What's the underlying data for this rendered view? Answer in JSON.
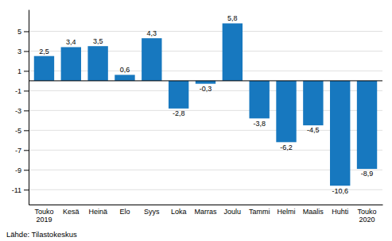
{
  "chart_data": {
    "type": "bar",
    "categories": [
      "Touko\n2019",
      "Kesä",
      "Heinä",
      "Elo",
      "Syys",
      "Loka",
      "Marras",
      "Joulu",
      "Tammi",
      "Helmi",
      "Maalis",
      "Huhti",
      "Touko\n2020"
    ],
    "values": [
      2.5,
      3.4,
      3.5,
      0.6,
      4.3,
      -2.8,
      -0.3,
      5.8,
      -3.8,
      -6.2,
      -4.5,
      -10.6,
      -8.9
    ],
    "value_labels": [
      "2,5",
      "3,4",
      "3,5",
      "0,6",
      "4,3",
      "-2,8",
      "-0,3",
      "5,8",
      "-3,8",
      "-6,2",
      "-4,5",
      "-10,6",
      "-8,9"
    ],
    "data_labels": true,
    "color": "#1778BF",
    "ylim": [
      -12.5,
      7.2
    ],
    "yticks": [
      -11,
      -9,
      -7,
      -5,
      -3,
      -1,
      1,
      3,
      5
    ],
    "grid": true,
    "annotations": [
      "Lähde: Tilastokeskus"
    ]
  }
}
